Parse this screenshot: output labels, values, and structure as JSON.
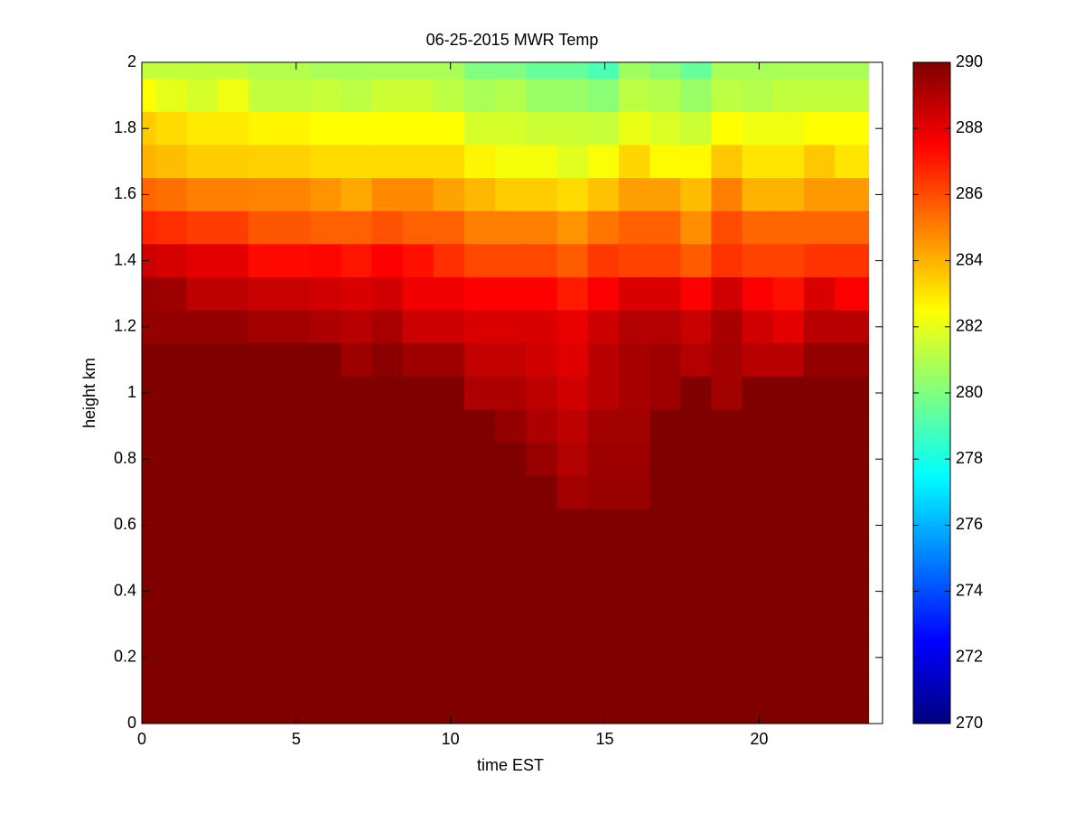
{
  "chart_data": {
    "type": "heatmap",
    "title": "06-25-2015 MWR Temp",
    "xlabel": "time EST",
    "ylabel": "height km",
    "colormap": "jet",
    "x_edges": [
      0,
      0.45,
      1.45,
      2.45,
      3.45,
      4.45,
      5.45,
      6.45,
      7.45,
      8.45,
      9.45,
      10.45,
      11.45,
      12.45,
      13.45,
      14.45,
      15.45,
      16.45,
      17.45,
      18.45,
      19.45,
      20.45,
      21.45,
      22.45,
      23.55
    ],
    "y_edges": [
      2,
      1.95,
      1.85,
      1.75,
      1.65,
      1.55,
      1.45,
      1.35,
      1.25,
      1.15,
      1.05,
      0.95,
      0.85,
      0.75,
      0.65,
      0.55,
      0.45,
      0.35,
      0.25,
      0.15,
      0.05,
      0
    ],
    "z": [
      [
        281.3,
        281.3,
        281.3,
        281.3,
        281,
        281,
        280.8,
        280.8,
        280.8,
        280.8,
        280.8,
        280,
        280,
        279.5,
        279.5,
        279,
        280.6,
        280.2,
        279.5,
        280.8,
        280.8,
        280.8,
        280.8,
        280.8
      ],
      [
        282.5,
        282,
        281.7,
        282.2,
        281.3,
        281.3,
        281.4,
        281.2,
        281.5,
        281.5,
        281.2,
        280.8,
        281,
        280.5,
        280.5,
        280.2,
        281.2,
        281,
        280.5,
        281.2,
        281,
        281.3,
        281.3,
        281.3
      ],
      [
        283.5,
        283.2,
        282.9,
        282.9,
        282.7,
        282.7,
        282.5,
        282.5,
        282.5,
        282.5,
        282.5,
        281.7,
        281.7,
        281.5,
        281.5,
        281.4,
        282.1,
        281.8,
        281.5,
        282.5,
        282.2,
        282.2,
        282.5,
        282.5
      ],
      [
        284,
        283.8,
        283.5,
        283.5,
        283.4,
        283.4,
        283.2,
        283.2,
        283.2,
        283.2,
        283.2,
        282.7,
        282.3,
        282.3,
        281.9,
        282.4,
        283.3,
        282.6,
        282.6,
        283.6,
        283,
        283,
        283.6,
        283
      ],
      [
        285.5,
        285.3,
        285,
        285,
        284.9,
        284.9,
        284.6,
        284.2,
        284.8,
        284.8,
        284.3,
        283.9,
        283.5,
        283.5,
        283.2,
        283.7,
        284.4,
        284.4,
        283.8,
        285,
        284,
        284,
        284.5,
        284.5
      ],
      [
        286.8,
        286.6,
        286.3,
        286.3,
        285.8,
        285.8,
        285.6,
        285.6,
        285.9,
        285.6,
        285.6,
        285,
        285,
        285,
        284.6,
        285.2,
        285.6,
        285.6,
        284.7,
        286,
        285.5,
        285.5,
        285.5,
        285.5
      ],
      [
        288.5,
        288.3,
        288,
        288,
        287.3,
        287.3,
        287.4,
        287.1,
        287.5,
        287.2,
        286.6,
        286.1,
        286.1,
        286.1,
        285.7,
        286.4,
        286.2,
        286.2,
        285.7,
        286.5,
        286.2,
        286.2,
        286.5,
        286.5
      ],
      [
        289.5,
        289.4,
        288.8,
        288.8,
        288.6,
        288.6,
        288.4,
        288.2,
        288.4,
        287.8,
        287.8,
        287.5,
        287.5,
        287.5,
        287,
        287.6,
        288.2,
        288.2,
        287.5,
        288.4,
        287.6,
        287.2,
        288.2,
        287.6
      ],
      [
        289.6,
        289.6,
        289.6,
        289.6,
        289.3,
        289.3,
        289.1,
        288.9,
        289.2,
        288.5,
        288.5,
        288.2,
        288.2,
        288.2,
        287.9,
        288.5,
        289,
        289,
        288.6,
        289.2,
        288.4,
        288,
        288.9,
        288.9
      ],
      [
        290,
        290,
        290,
        290,
        290,
        290,
        290,
        289.4,
        289.8,
        289.4,
        289.4,
        288.7,
        288.7,
        288.4,
        288.1,
        288.9,
        289.2,
        289.4,
        289,
        289.3,
        288.9,
        288.9,
        289.6,
        289.6
      ],
      [
        290,
        290,
        290,
        290,
        290,
        290,
        290,
        290,
        290,
        290,
        290,
        289.1,
        289.1,
        288.8,
        288.4,
        288.9,
        289.2,
        289.4,
        290,
        289.3,
        290,
        290,
        290,
        290
      ],
      [
        290,
        290,
        290,
        290,
        290,
        290,
        290,
        290,
        290,
        290,
        290,
        290,
        289.6,
        289.1,
        288.8,
        289.3,
        289.3,
        290,
        290,
        290,
        290,
        290,
        290,
        290
      ],
      [
        290,
        290,
        290,
        290,
        290,
        290,
        290,
        290,
        290,
        290,
        290,
        290,
        290,
        289.5,
        289,
        289.4,
        289.4,
        290,
        290,
        290,
        290,
        290,
        290,
        290
      ],
      [
        290,
        290,
        290,
        290,
        290,
        290,
        290,
        290,
        290,
        290,
        290,
        290,
        290,
        290,
        289.3,
        289.5,
        289.5,
        290,
        290,
        290,
        290,
        290,
        290,
        290
      ],
      [
        290,
        290,
        290,
        290,
        290,
        290,
        290,
        290,
        290,
        290,
        290,
        290,
        290,
        290,
        290,
        290,
        290,
        290,
        290,
        290,
        290,
        290,
        290,
        290
      ],
      [
        290,
        290,
        290,
        290,
        290,
        290,
        290,
        290,
        290,
        290,
        290,
        290,
        290,
        290,
        290,
        290,
        290,
        290,
        290,
        290,
        290,
        290,
        290,
        290
      ],
      [
        290,
        290,
        290,
        290,
        290,
        290,
        290,
        290,
        290,
        290,
        290,
        290,
        290,
        290,
        290,
        290,
        290,
        290,
        290,
        290,
        290,
        290,
        290,
        290
      ],
      [
        290,
        290,
        290,
        290,
        290,
        290,
        290,
        290,
        290,
        290,
        290,
        290,
        290,
        290,
        290,
        290,
        290,
        290,
        290,
        290,
        290,
        290,
        290,
        290
      ],
      [
        290,
        290,
        290,
        290,
        290,
        290,
        290,
        290,
        290,
        290,
        290,
        290,
        290,
        290,
        290,
        290,
        290,
        290,
        290,
        290,
        290,
        290,
        290,
        290
      ],
      [
        290,
        290,
        290,
        290,
        290,
        290,
        290,
        290,
        290,
        290,
        290,
        290,
        290,
        290,
        290,
        290,
        290,
        290,
        290,
        290,
        290,
        290,
        290,
        290
      ],
      [
        290,
        290,
        290,
        290,
        290,
        290,
        290,
        290,
        290,
        290,
        290,
        290,
        290,
        290,
        290,
        290,
        290,
        290,
        290,
        290,
        290,
        290,
        290,
        290
      ]
    ],
    "xlim": [
      0,
      24
    ],
    "xticks": [
      0,
      5,
      10,
      15,
      20
    ],
    "ylim": [
      0,
      2
    ],
    "yticks": [
      0,
      0.2,
      0.4,
      0.6,
      0.8,
      1,
      1.2,
      1.4,
      1.6,
      1.8,
      2
    ],
    "clim": [
      270,
      290
    ],
    "cticks": [
      270,
      272,
      274,
      276,
      278,
      280,
      282,
      284,
      286,
      288,
      290
    ]
  }
}
